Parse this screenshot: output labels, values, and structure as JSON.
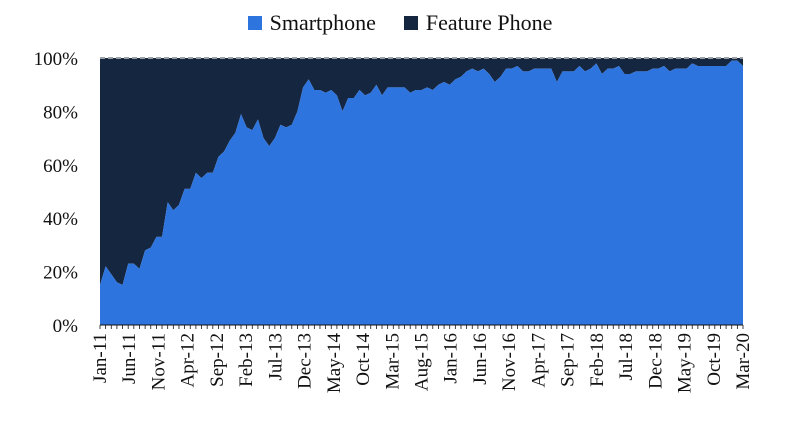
{
  "chart_data": {
    "type": "area",
    "stacked": true,
    "normalized_100pct": true,
    "legend_position": "top-center",
    "x_tick_labels": [
      "Jan-11",
      "Jun-11",
      "Nov-11",
      "Apr-12",
      "Sep-12",
      "Feb-13",
      "Jul-13",
      "Dec-13",
      "May-14",
      "Oct-14",
      "Mar-15",
      "Aug-15",
      "Jan-16",
      "Jun-16",
      "Nov-16",
      "Apr-17",
      "Sep-17",
      "Feb-18",
      "Jul-18",
      "Dec-18",
      "May-19",
      "Oct-19",
      "Mar-20"
    ],
    "y_tick_labels": [
      "0%",
      "20%",
      "40%",
      "60%",
      "80%",
      "100%"
    ],
    "ylim": [
      0,
      100
    ],
    "reference_line_at": 100,
    "series": [
      {
        "name": "Smartphone",
        "color": "#2e74de",
        "values": [
          15,
          22,
          19,
          16,
          15,
          23,
          23,
          21,
          28,
          29,
          33,
          33,
          46,
          43,
          45,
          51,
          51,
          57,
          55,
          57,
          57,
          63,
          65,
          69,
          72,
          79,
          74,
          73,
          77,
          70,
          67,
          70,
          75,
          74,
          75,
          80,
          89,
          92,
          88,
          88,
          87,
          88,
          86,
          80,
          85,
          85,
          88,
          86,
          87,
          90,
          86,
          89,
          89,
          89,
          89,
          87,
          88,
          88,
          89,
          88,
          90,
          91,
          90,
          92,
          93,
          95,
          96,
          95,
          96,
          94,
          91,
          93,
          96,
          96,
          97,
          95,
          95,
          96,
          96,
          96,
          96,
          91,
          95,
          95,
          95,
          97,
          95,
          96,
          98,
          94,
          96,
          96,
          97,
          94,
          94,
          95,
          95,
          95,
          96,
          96,
          97,
          95,
          96,
          96,
          96,
          98,
          97,
          97,
          97,
          97,
          97,
          97,
          99,
          99,
          97
        ]
      },
      {
        "name": "Feature Phone",
        "color": "#142640",
        "values": [
          85,
          78,
          81,
          84,
          85,
          77,
          77,
          79,
          72,
          71,
          67,
          67,
          54,
          57,
          55,
          49,
          49,
          43,
          45,
          43,
          43,
          37,
          35,
          31,
          28,
          21,
          26,
          27,
          23,
          30,
          33,
          30,
          25,
          26,
          25,
          20,
          11,
          8,
          12,
          12,
          13,
          12,
          14,
          20,
          15,
          15,
          12,
          14,
          13,
          10,
          14,
          11,
          11,
          11,
          11,
          13,
          12,
          12,
          11,
          12,
          10,
          9,
          10,
          8,
          7,
          5,
          4,
          5,
          4,
          6,
          9,
          7,
          4,
          4,
          3,
          5,
          5,
          4,
          4,
          4,
          4,
          9,
          5,
          5,
          5,
          3,
          5,
          4,
          2,
          6,
          4,
          4,
          3,
          6,
          6,
          5,
          5,
          5,
          4,
          4,
          3,
          5,
          4,
          4,
          4,
          2,
          3,
          3,
          3,
          3,
          3,
          3,
          1,
          1,
          3
        ]
      }
    ]
  },
  "legend": {
    "items": [
      {
        "label": "Smartphone",
        "color": "#2e74de"
      },
      {
        "label": "Feature Phone",
        "color": "#142640"
      }
    ]
  }
}
